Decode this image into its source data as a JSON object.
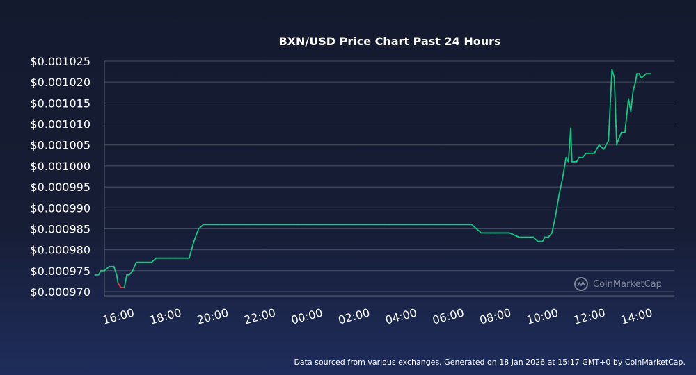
{
  "chart_data": {
    "type": "line",
    "title": "BXN/USD Price Chart Past 24 Hours",
    "xlabel": "",
    "ylabel": "",
    "y_ticks": [
      "$0.001025",
      "$0.001020",
      "$0.001015",
      "$0.001010",
      "$0.001005",
      "$0.001000",
      "$0.000995",
      "$0.000990",
      "$0.000985",
      "$0.000980",
      "$0.000975",
      "$0.000970"
    ],
    "x_ticks": [
      "16:00",
      "18:00",
      "20:00",
      "22:00",
      "00:00",
      "02:00",
      "04:00",
      "06:00",
      "08:00",
      "10:00",
      "12:00",
      "14:00"
    ],
    "ylim": [
      0.000969,
      0.001025
    ],
    "xlim": [
      15.4,
      39.6
    ],
    "grid": true,
    "colors": {
      "up": "#16c784",
      "down": "#ea3943",
      "grid": "#4b5163",
      "axis": "#5f6677"
    },
    "series": [
      {
        "x": [
          15.0,
          15.15,
          15.25,
          15.4,
          15.6,
          15.8,
          15.92,
          15.98,
          16.1,
          16.25,
          16.35,
          16.45,
          16.6,
          16.75,
          16.9,
          17.05,
          17.2,
          17.4,
          17.6,
          17.8,
          18.0,
          18.2,
          18.4,
          18.6,
          18.8,
          19.0,
          19.2,
          19.4,
          19.6,
          19.8,
          20.0,
          20.2,
          20.4,
          20.6,
          20.8,
          21.0,
          21.3,
          21.6,
          22.0,
          22.4,
          22.8,
          23.2,
          23.6,
          24.0,
          24.5,
          25.0,
          25.5,
          26.0,
          26.5,
          27.0,
          27.5,
          28.0,
          28.5,
          29.0,
          29.5,
          30.0,
          30.5,
          31.0,
          31.2,
          31.4,
          31.6,
          31.8,
          32.0,
          32.3,
          32.6,
          33.0,
          33.3,
          33.6,
          33.8,
          34.0,
          34.1,
          34.25,
          34.4,
          34.55,
          34.7,
          34.85,
          35.0,
          35.1,
          35.2,
          35.25,
          35.35,
          35.45,
          35.55,
          35.7,
          35.85,
          36.0,
          36.2,
          36.4,
          36.6,
          36.8,
          36.95,
          37.0,
          37.05,
          37.15,
          37.2,
          37.35,
          37.5,
          37.65,
          37.75,
          37.85,
          37.95,
          38.0,
          38.1,
          38.2,
          38.4,
          38.6
        ],
        "y": [
          0.000974,
          0.000974,
          0.000975,
          0.000975,
          0.000976,
          0.000976,
          0.000974,
          0.000972,
          0.000971,
          0.000971,
          0.000974,
          0.000974,
          0.000975,
          0.000977,
          0.000977,
          0.000977,
          0.000977,
          0.000977,
          0.000978,
          0.000978,
          0.000978,
          0.000978,
          0.000978,
          0.000978,
          0.000978,
          0.000978,
          0.000982,
          0.000985,
          0.000986,
          0.000986,
          0.000986,
          0.000986,
          0.000986,
          0.000986,
          0.000986,
          0.000986,
          0.000986,
          0.000986,
          0.000986,
          0.000986,
          0.000986,
          0.000986,
          0.000986,
          0.000986,
          0.000986,
          0.000986,
          0.000986,
          0.000986,
          0.000986,
          0.000986,
          0.000986,
          0.000986,
          0.000986,
          0.000986,
          0.000986,
          0.000986,
          0.000986,
          0.000986,
          0.000985,
          0.000984,
          0.000984,
          0.000984,
          0.000984,
          0.000984,
          0.000984,
          0.000983,
          0.000983,
          0.000983,
          0.000982,
          0.000982,
          0.000983,
          0.000983,
          0.000984,
          0.000988,
          0.000993,
          0.000997,
          0.001002,
          0.001001,
          0.001009,
          0.001001,
          0.001001,
          0.001001,
          0.001002,
          0.001002,
          0.001003,
          0.001003,
          0.001003,
          0.001005,
          0.001004,
          0.001006,
          0.001023,
          0.001022,
          0.001021,
          0.001005,
          0.001006,
          0.001008,
          0.001008,
          0.001016,
          0.001013,
          0.001018,
          0.00102,
          0.001022,
          0.001022,
          0.001021,
          0.001022,
          0.001022
        ]
      }
    ]
  },
  "watermark": {
    "label": "CoinMarketCap"
  },
  "footer": "Data sourced from various exchanges. Generated on 18 Jan 2026 at 15:17 GMT+0 by CoinMarketCap."
}
